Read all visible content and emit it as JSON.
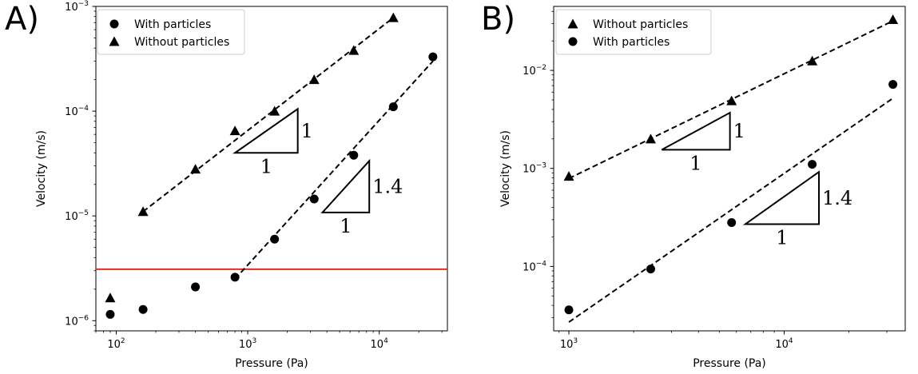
{
  "chart_data": [
    {
      "panel_label": "A)",
      "type": "scatter",
      "xlabel": "Pressure (Pa)",
      "ylabel": "Velocity (m/s)",
      "xscale": "log",
      "yscale": "log",
      "xlim": [
        70,
        33000
      ],
      "ylim": [
        8e-07,
        0.001
      ],
      "xticks": [
        {
          "value": 100,
          "base": "10",
          "exp": "2"
        },
        {
          "value": 1000,
          "base": "10",
          "exp": "3"
        },
        {
          "value": 10000,
          "base": "10",
          "exp": "4"
        }
      ],
      "yticks": [
        {
          "value": 1e-06,
          "base": "10",
          "exp": "−6"
        },
        {
          "value": 1e-05,
          "base": "10",
          "exp": "−5"
        },
        {
          "value": 0.0001,
          "base": "10",
          "exp": "−4"
        },
        {
          "value": 0.001,
          "base": "10",
          "exp": "−3"
        }
      ],
      "legend": {
        "position": "top-left"
      },
      "series": [
        {
          "name": "With particles",
          "marker": "circle",
          "x": [
            90,
            160,
            400,
            800,
            1600,
            3200,
            6400,
            12800,
            25600
          ],
          "y": [
            1.15e-06,
            1.28e-06,
            2.1e-06,
            2.6e-06,
            6e-06,
            1.45e-05,
            3.8e-05,
            0.00011,
            0.00033
          ]
        },
        {
          "name": "Without particles",
          "marker": "triangle",
          "x": [
            90,
            160,
            400,
            800,
            1600,
            3200,
            6400,
            12800
          ],
          "y": [
            1.65e-06,
            1.1e-05,
            2.8e-05,
            6.5e-05,
            0.0001,
            0.0002,
            0.00038,
            0.00078
          ]
        }
      ],
      "fit_lines": [
        {
          "x": [
            160,
            12800
          ],
          "y": [
            1.1e-05,
            0.00078
          ]
        },
        {
          "x": [
            800,
            25600
          ],
          "y": [
            2.5e-06,
            0.0003
          ]
        }
      ],
      "threshold_line": {
        "y": 3.1e-06,
        "color": "#e8291c"
      },
      "slope_triangles": [
        {
          "x0": 800,
          "x1": 2400,
          "y0": 4e-05,
          "y1": 0.000105,
          "slope_label": "1",
          "run_label": "1"
        },
        {
          "x0": 3700,
          "x1": 8400,
          "y0": 1.08e-05,
          "y1": 3.35e-05,
          "slope_label": "1.4",
          "run_label": "1"
        }
      ]
    },
    {
      "panel_label": "B)",
      "type": "scatter",
      "xlabel": "Pressure (Pa)",
      "ylabel": "Velocity (m/s)",
      "xscale": "log",
      "yscale": "log",
      "xlim": [
        850,
        36500
      ],
      "ylim": [
        2.2e-05,
        0.045
      ],
      "xticks": [
        {
          "value": 1000,
          "base": "10",
          "exp": "3"
        },
        {
          "value": 10000,
          "base": "10",
          "exp": "4"
        }
      ],
      "yticks": [
        {
          "value": 0.0001,
          "base": "10",
          "exp": "−4"
        },
        {
          "value": 0.001,
          "base": "10",
          "exp": "−3"
        },
        {
          "value": 0.01,
          "base": "10",
          "exp": "−2"
        }
      ],
      "legend": {
        "position": "top-left"
      },
      "series": [
        {
          "name": "Without particles",
          "marker": "triangle",
          "x": [
            1000,
            2400,
            5700,
            13500,
            32000
          ],
          "y": [
            0.00083,
            0.002,
            0.0049,
            0.0125,
            0.033
          ]
        },
        {
          "name": "With particles",
          "marker": "circle",
          "x": [
            1000,
            2400,
            5700,
            13500,
            32000
          ],
          "y": [
            3.6e-05,
            9.4e-05,
            0.00028,
            0.0011,
            0.0072
          ]
        }
      ],
      "fit_lines": [
        {
          "x": [
            1000,
            32000
          ],
          "y": [
            0.00079,
            0.032
          ]
        },
        {
          "x": [
            1000,
            32000
          ],
          "y": [
            2.7e-05,
            0.0052
          ]
        }
      ],
      "slope_triangles": [
        {
          "x0": 2700,
          "x1": 5600,
          "y0": 0.00155,
          "y1": 0.0037,
          "slope_label": "1",
          "run_label": "1"
        },
        {
          "x0": 6600,
          "x1": 14500,
          "y0": 0.00027,
          "y1": 0.00092,
          "slope_label": "1.4",
          "run_label": "1"
        }
      ]
    }
  ]
}
